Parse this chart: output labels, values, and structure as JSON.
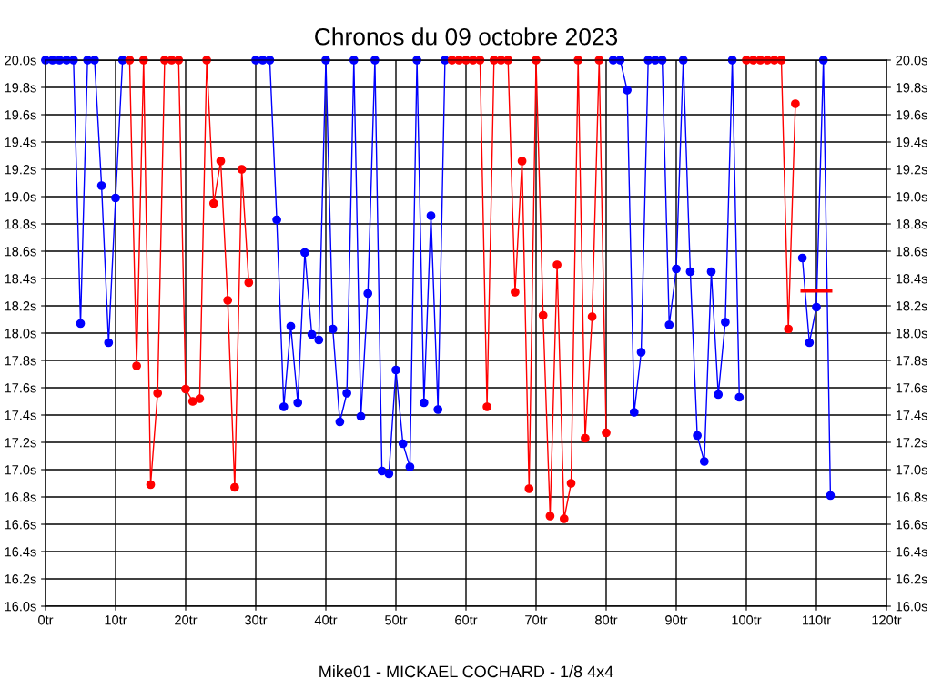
{
  "chart_data": {
    "type": "line",
    "title": "Chronos du 09 octobre 2023",
    "xlabel": "Mike01 - MICKAEL COCHARD - 1/8 4x4",
    "xlim": [
      0,
      120
    ],
    "xticks": [
      {
        "value": 0,
        "label": "0tr"
      },
      {
        "value": 10,
        "label": "10tr"
      },
      {
        "value": 20,
        "label": "20tr"
      },
      {
        "value": 30,
        "label": "30tr"
      },
      {
        "value": 40,
        "label": "40tr"
      },
      {
        "value": 50,
        "label": "50tr"
      },
      {
        "value": 60,
        "label": "60tr"
      },
      {
        "value": 70,
        "label": "70tr"
      },
      {
        "value": 80,
        "label": "80tr"
      },
      {
        "value": 90,
        "label": "90tr"
      },
      {
        "value": 100,
        "label": "100tr"
      },
      {
        "value": 110,
        "label": "110tr"
      },
      {
        "value": 120,
        "label": "120tr"
      }
    ],
    "ylim": [
      16,
      20
    ],
    "yticks": [
      {
        "value": 16,
        "label": "16.0s"
      },
      {
        "value": 16.2,
        "label": "16.2s"
      },
      {
        "value": 16.4,
        "label": "16.4s"
      },
      {
        "value": 16.6,
        "label": "16.6s"
      },
      {
        "value": 16.8,
        "label": "16.8s"
      },
      {
        "value": 17,
        "label": "17.0s"
      },
      {
        "value": 17.2,
        "label": "17.2s"
      },
      {
        "value": 17.4,
        "label": "17.4s"
      },
      {
        "value": 17.6,
        "label": "17.6s"
      },
      {
        "value": 17.8,
        "label": "17.8s"
      },
      {
        "value": 18,
        "label": "18.0s"
      },
      {
        "value": 18.2,
        "label": "18.2s"
      },
      {
        "value": 18.4,
        "label": "18.4s"
      },
      {
        "value": 18.6,
        "label": "18.6s"
      },
      {
        "value": 18.8,
        "label": "18.8s"
      },
      {
        "value": 19,
        "label": "19.0s"
      },
      {
        "value": 19.2,
        "label": "19.2s"
      },
      {
        "value": 19.4,
        "label": "19.4s"
      },
      {
        "value": 19.6,
        "label": "19.6s"
      },
      {
        "value": 19.8,
        "label": "19.8s"
      },
      {
        "value": 20,
        "label": "20.0s"
      }
    ],
    "y2lim": [
      16,
      20
    ],
    "y2ticks": [
      {
        "value": 16,
        "label": "16.0s"
      },
      {
        "value": 16.2,
        "label": "16.2s"
      },
      {
        "value": 16.4,
        "label": "16.4s"
      },
      {
        "value": 16.6,
        "label": "16.6s"
      },
      {
        "value": 16.8,
        "label": "16.8s"
      },
      {
        "value": 17,
        "label": "17.0s"
      },
      {
        "value": 17.2,
        "label": "17.2s"
      },
      {
        "value": 17.4,
        "label": "17.4s"
      },
      {
        "value": 17.6,
        "label": "17.6s"
      },
      {
        "value": 17.8,
        "label": "17.8s"
      },
      {
        "value": 18,
        "label": "18.0s"
      },
      {
        "value": 18.2,
        "label": "18.2s"
      },
      {
        "value": 18.4,
        "label": "18.4s"
      },
      {
        "value": 18.6,
        "label": "18.6s"
      },
      {
        "value": 18.8,
        "label": "18.8s"
      },
      {
        "value": 19,
        "label": "19.0s"
      },
      {
        "value": 19.2,
        "label": "19.2s"
      },
      {
        "value": 19.4,
        "label": "19.4s"
      },
      {
        "value": 19.6,
        "label": "19.6s"
      },
      {
        "value": 19.8,
        "label": "19.8s"
      },
      {
        "value": 20,
        "label": "20.0s"
      }
    ],
    "grid": true,
    "marker": "circle",
    "line_style": "solid",
    "series": [
      {
        "color": "#0000ff",
        "x": [
          0,
          1,
          2,
          3,
          4,
          5,
          6,
          7,
          8,
          9,
          10,
          11
        ],
        "values": [
          20,
          20,
          20,
          20,
          20,
          18.07,
          20,
          20,
          19.08,
          17.93,
          18.99,
          20
        ]
      },
      {
        "color": "#ff0000",
        "x": [
          12,
          13,
          14,
          15,
          16,
          17,
          18,
          19,
          20,
          21,
          22,
          23,
          24,
          25,
          26,
          27,
          28,
          29
        ],
        "values": [
          20,
          17.76,
          20,
          16.89,
          17.56,
          20,
          20,
          20,
          17.59,
          17.5,
          17.52,
          20,
          18.95,
          19.26,
          18.24,
          16.87,
          19.2,
          18.37
        ]
      },
      {
        "color": "#0000ff",
        "x": [
          30,
          31,
          32,
          33,
          34,
          35,
          36,
          37,
          38,
          39,
          40,
          41,
          42,
          43,
          44,
          45,
          46,
          47,
          48,
          49,
          50,
          51,
          52,
          53,
          54,
          55,
          56,
          57
        ],
        "values": [
          20,
          20,
          20,
          18.83,
          17.46,
          18.05,
          17.49,
          18.59,
          17.99,
          17.95,
          20,
          18.03,
          17.35,
          17.56,
          20,
          17.39,
          18.29,
          20,
          16.99,
          16.97,
          17.73,
          17.19,
          17.02,
          20,
          17.49,
          18.86,
          17.44,
          20
        ]
      },
      {
        "color": "#ff0000",
        "x": [
          58,
          59,
          60,
          61,
          62,
          63,
          64,
          65,
          66,
          67,
          68,
          69,
          70,
          71,
          72,
          73,
          74,
          75,
          76,
          77,
          78,
          79,
          80
        ],
        "values": [
          20,
          20,
          20,
          20,
          20,
          17.46,
          20,
          20,
          20,
          18.3,
          19.26,
          16.86,
          20,
          18.13,
          16.66,
          18.5,
          16.64,
          16.9,
          20,
          17.23,
          18.12,
          20,
          17.27
        ]
      },
      {
        "color": "#0000ff",
        "x": [
          81,
          82,
          83,
          84,
          85,
          86,
          87,
          88,
          89,
          90,
          91,
          92,
          93,
          94,
          95,
          96,
          97,
          98,
          99
        ],
        "values": [
          20,
          20,
          19.78,
          17.42,
          17.86,
          20,
          20,
          20,
          18.06,
          18.47,
          20,
          18.45,
          17.25,
          17.06,
          18.45,
          17.55,
          18.08,
          20,
          17.53
        ]
      },
      {
        "color": "#ff0000",
        "x": [
          100,
          101,
          102,
          103,
          104,
          105,
          106,
          107
        ],
        "values": [
          20,
          20,
          20,
          20,
          20,
          20,
          18.03,
          19.68
        ]
      },
      {
        "color": "#0000ff",
        "x": [
          108,
          109,
          110,
          111,
          112
        ],
        "values": [
          18.55,
          17.93,
          18.19,
          20,
          16.81
        ]
      },
      {
        "color": "#ff0000",
        "marker": "none",
        "x": [
          108,
          112
        ],
        "values": [
          18.31,
          18.31
        ]
      }
    ]
  }
}
